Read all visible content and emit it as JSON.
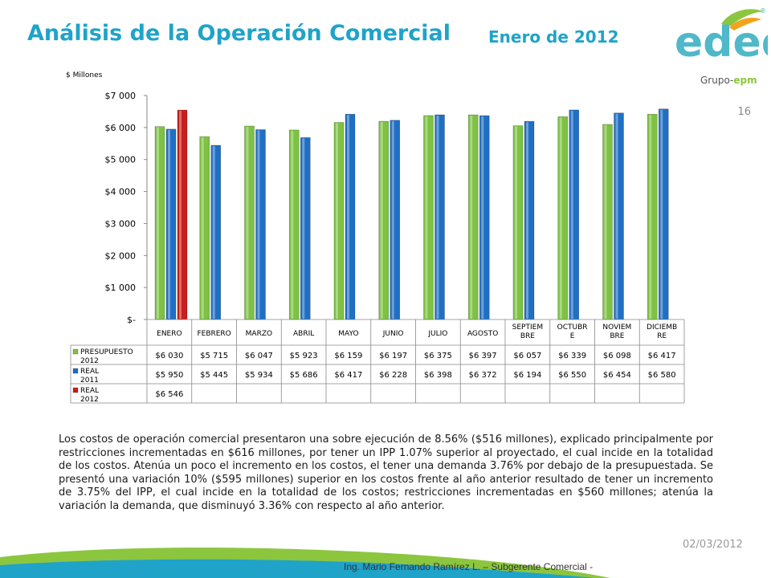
{
  "header": {
    "title": "Análisis de la Operación Comercial",
    "subtitle": "Enero de 2012",
    "logo_text": "edeq",
    "group_prefix": "Grupo-",
    "group_name": "epm",
    "registered_mark": "®",
    "page_number": "16"
  },
  "colors": {
    "title": "#1fa3c9",
    "presupuesto": "#7dc242",
    "real2011": "#1f6fc4",
    "real2012": "#c81e1e",
    "logo": "#4fb8c9"
  },
  "chart_data": {
    "type": "bar",
    "unit_label": "$ Millones",
    "ylim": [
      0,
      7000
    ],
    "yticks": [
      0,
      1000,
      2000,
      3000,
      4000,
      5000,
      6000,
      7000
    ],
    "ytick_labels": [
      "$-",
      "$1 000",
      "$2 000",
      "$3 000",
      "$4 000",
      "$5 000",
      "$6 000",
      "$7 000"
    ],
    "categories": [
      "ENERO",
      "FEBRERO",
      "MARZO",
      "ABRIL",
      "MAYO",
      "JUNIO",
      "JULIO",
      "AGOSTO",
      "SEPTIEM BRE",
      "OCTUBR E",
      "NOVIEM BRE",
      "DICIEMB RE"
    ],
    "series": [
      {
        "name": "PRESUPUESTO 2012",
        "values": [
          6030,
          5715,
          6047,
          5923,
          6159,
          6197,
          6375,
          6397,
          6057,
          6339,
          6098,
          6417
        ],
        "labels": [
          "$6 030",
          "$5 715",
          "$6 047",
          "$5 923",
          "$6 159",
          "$6 197",
          "$6 375",
          "$6 397",
          "$6 057",
          "$6 339",
          "$6 098",
          "$6 417"
        ]
      },
      {
        "name": "REAL 2011",
        "values": [
          5950,
          5445,
          5934,
          5686,
          6417,
          6228,
          6398,
          6372,
          6194,
          6550,
          6454,
          6580
        ],
        "labels": [
          "$5 950",
          "$5 445",
          "$5 934",
          "$5 686",
          "$6 417",
          "$6 228",
          "$6 398",
          "$6 372",
          "$6 194",
          "$6 550",
          "$6 454",
          "$6 580"
        ]
      },
      {
        "name": "REAL 2012",
        "values": [
          6546,
          null,
          null,
          null,
          null,
          null,
          null,
          null,
          null,
          null,
          null,
          null
        ],
        "labels": [
          "$6 546",
          "",
          "",
          "",
          "",
          "",
          "",
          "",
          "",
          "",
          "",
          ""
        ]
      }
    ],
    "legend": "table-below",
    "grid": false
  },
  "body_text": "Los costos de operación comercial presentaron una sobre ejecución de 8.56% ($516 millones), explicado principalmente por restricciones incrementadas en $616 millones, por tener un IPP 1.07% superior al proyectado, el cual incide en la totalidad de los costos. Atenúa un poco el incremento en los costos, el tener una demanda 3.76% por debajo de la presupuestada. Se presentó una variación 10% ($595 millones) superior en los costos frente al año anterior resultado de tener un incremento de 3.75% del IPP, el cual incide en la totalidad de los costos; restricciones incrementadas en $560 millones; atenúa la variación la demanda, que disminuyó 3.36% con respecto al año anterior.",
  "footer": {
    "date": "02/03/2012",
    "author": "Ing. Mario Fernando Ramírez L. – Subgerente Comercial -"
  }
}
